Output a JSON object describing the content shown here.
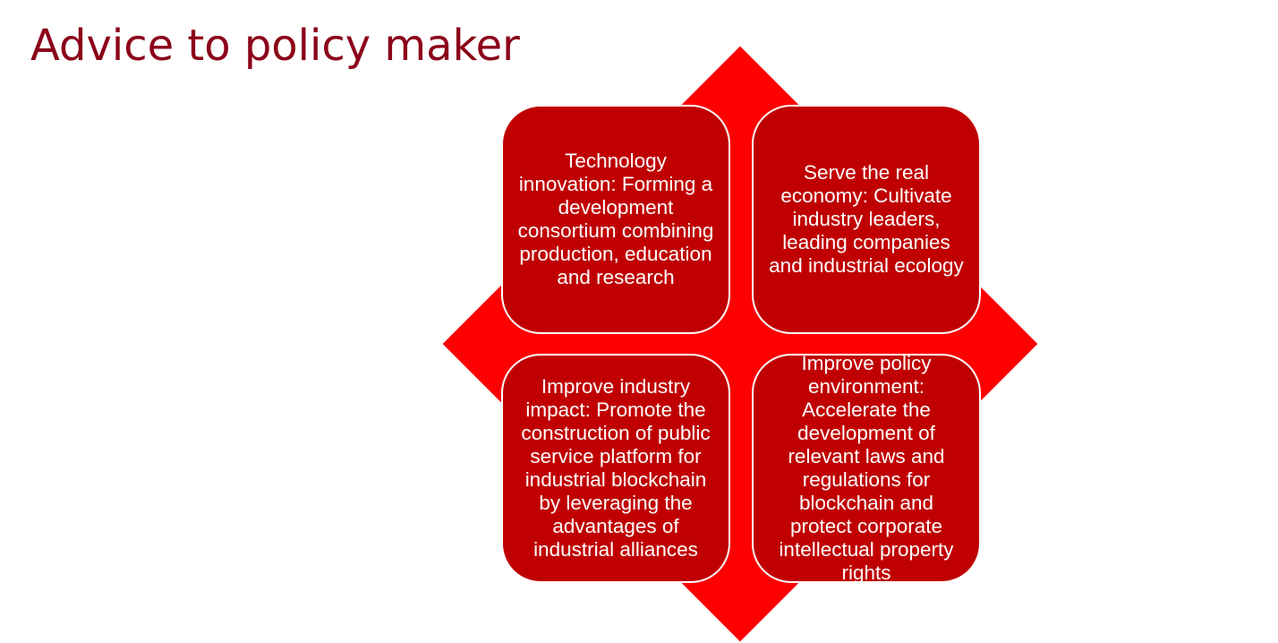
{
  "slide": {
    "title": "Advice to policy maker"
  },
  "colors": {
    "title": "#8b0019",
    "diamond": "#ff0000",
    "card_fill": "#c00000",
    "card_border": "#ffffff",
    "card_text": "#ffffff"
  },
  "diagram": {
    "cards": [
      {
        "position": "top-left",
        "text": "Technology innovation: Forming a development consortium combining production, education and research"
      },
      {
        "position": "top-right",
        "text": "Serve the real economy: Cultivate industry leaders, leading companies and industrial ecology"
      },
      {
        "position": "bottom-left",
        "text": "Improve industry impact: Promote the construction of public service platform for industrial blockchain by leveraging the advantages of industrial alliances"
      },
      {
        "position": "bottom-right",
        "text": "Improve policy environment: Accelerate the development of relevant laws and regulations for blockchain and protect corporate intellectual property rights"
      }
    ]
  }
}
